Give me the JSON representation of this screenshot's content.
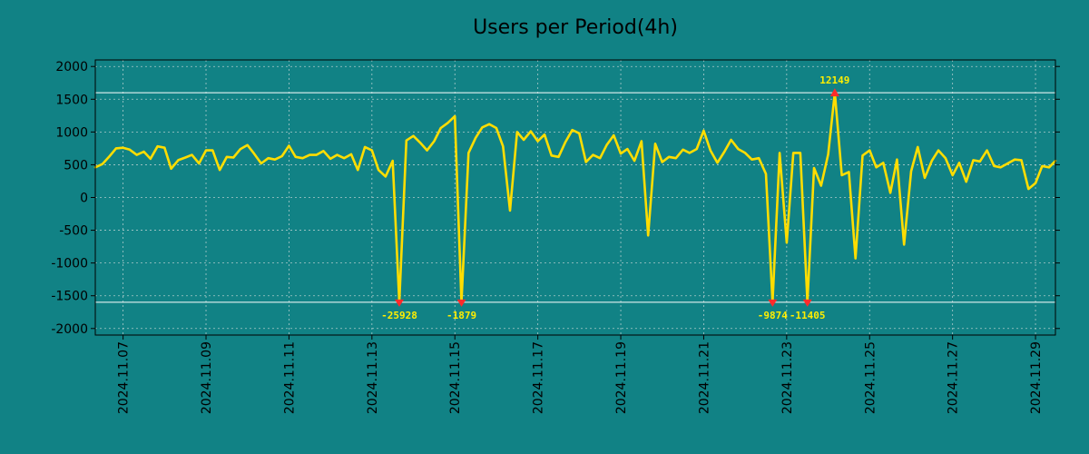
{
  "colors": {
    "background": "#118285",
    "line": "#ffdd00",
    "grid": "#c8d8d8",
    "threshold": "#ffffff",
    "marker": "#ff2a2a",
    "annotation": "#ffee00",
    "text": "#000000"
  },
  "chart_data": {
    "type": "line",
    "title": "Users per Period(4h)",
    "xlabel": "",
    "ylabel": "",
    "xlim": [
      0.0,
      23.15
    ],
    "ylim": [
      -2100,
      2100
    ],
    "grid": true,
    "y_ticks": [
      2000,
      1500,
      1000,
      500,
      0,
      -500,
      -1000,
      -1500,
      -2000
    ],
    "y_tick_labels": [
      "2000",
      "1500",
      "1000",
      "500",
      "0",
      "-500",
      "-1000",
      "-1500",
      "-2000"
    ],
    "x_ticks": [
      0.67,
      2.67,
      4.67,
      6.67,
      8.67,
      10.67,
      12.67,
      14.67,
      16.67,
      18.67,
      20.67,
      22.67
    ],
    "x_tick_labels": [
      "2024.11.07",
      "2024.11.09",
      "2024.11.11",
      "2024.11.13",
      "2024.11.15",
      "2024.11.17",
      "2024.11.19",
      "2024.11.21",
      "2024.11.23",
      "2024.11.25",
      "2024.11.27",
      "2024.11.29"
    ],
    "threshold_lines": [
      1600,
      -1600
    ],
    "series": [
      {
        "name": "Users",
        "x": [
          0.0,
          0.17,
          0.33,
          0.5,
          0.67,
          0.83,
          1.0,
          1.17,
          1.33,
          1.5,
          1.67,
          1.83,
          2.0,
          2.17,
          2.33,
          2.5,
          2.67,
          2.83,
          3.0,
          3.17,
          3.33,
          3.5,
          3.67,
          3.83,
          4.0,
          4.17,
          4.33,
          4.5,
          4.67,
          4.83,
          5.0,
          5.17,
          5.33,
          5.5,
          5.67,
          5.83,
          6.0,
          6.17,
          6.33,
          6.5,
          6.67,
          6.83,
          7.0,
          7.17,
          7.33,
          7.5,
          7.67,
          7.83,
          8.0,
          8.17,
          8.33,
          8.5,
          8.67,
          8.83,
          9.0,
          9.17,
          9.33,
          9.5,
          9.67,
          9.83,
          10.0,
          10.17,
          10.33,
          10.5,
          10.67,
          10.83,
          11.0,
          11.17,
          11.33,
          11.5,
          11.67,
          11.83,
          12.0,
          12.17,
          12.33,
          12.5,
          12.67,
          12.83,
          13.0,
          13.17,
          13.33,
          13.5,
          13.67,
          13.83,
          14.0,
          14.17,
          14.33,
          14.5,
          14.67,
          14.83,
          15.0,
          15.17,
          15.33,
          15.5,
          15.67,
          15.83,
          16.0,
          16.17,
          16.33,
          16.5,
          16.67,
          16.83,
          17.0,
          17.17,
          17.33,
          17.5,
          17.67,
          17.83,
          18.0,
          18.17,
          18.33,
          18.5,
          18.67,
          18.83,
          19.0,
          19.17,
          19.33,
          19.5,
          19.67,
          19.83,
          20.0,
          20.17,
          20.33,
          20.5,
          20.67,
          20.83,
          21.0,
          21.17,
          21.33,
          21.5,
          21.67,
          21.83,
          22.0,
          22.17,
          22.33,
          22.5,
          22.67,
          22.83,
          23.0,
          23.15
        ],
        "values": [
          460,
          510,
          620,
          750,
          760,
          730,
          650,
          700,
          590,
          780,
          760,
          440,
          570,
          610,
          650,
          520,
          720,
          720,
          420,
          620,
          610,
          740,
          800,
          670,
          520,
          600,
          580,
          630,
          790,
          620,
          600,
          650,
          650,
          710,
          590,
          650,
          600,
          660,
          420,
          770,
          720,
          420,
          320,
          560,
          -1600,
          870,
          940,
          840,
          720,
          860,
          1060,
          1140,
          1240,
          -1600,
          680,
          910,
          1070,
          1120,
          1060,
          780,
          -200,
          1000,
          880,
          1010,
          860,
          960,
          640,
          620,
          840,
          1030,
          980,
          540,
          650,
          600,
          800,
          950,
          670,
          740,
          560,
          860,
          -580,
          820,
          540,
          620,
          600,
          730,
          680,
          740,
          1020,
          720,
          530,
          700,
          880,
          740,
          680,
          580,
          600,
          360,
          -1600,
          680,
          -690,
          680,
          680,
          -1600,
          450,
          180,
          660,
          1600,
          340,
          390,
          -930,
          640,
          720,
          460,
          530,
          70,
          580,
          -720,
          400,
          770,
          300,
          560,
          720,
          600,
          340,
          530,
          240,
          570,
          550,
          720,
          480,
          460,
          520,
          580,
          570,
          130,
          220,
          480,
          460,
          560
        ]
      }
    ],
    "annotations": [
      {
        "type": "min",
        "x": 7.33,
        "y": -1600,
        "label": "-25928"
      },
      {
        "type": "min",
        "x": 8.83,
        "y": -1600,
        "label": "-1879"
      },
      {
        "type": "min",
        "x": 16.33,
        "y": -1600,
        "label": "-9874"
      },
      {
        "type": "min",
        "x": 17.17,
        "y": -1600,
        "label": "-11405"
      },
      {
        "type": "max",
        "x": 17.83,
        "y": 1600,
        "label": "12149"
      }
    ]
  }
}
